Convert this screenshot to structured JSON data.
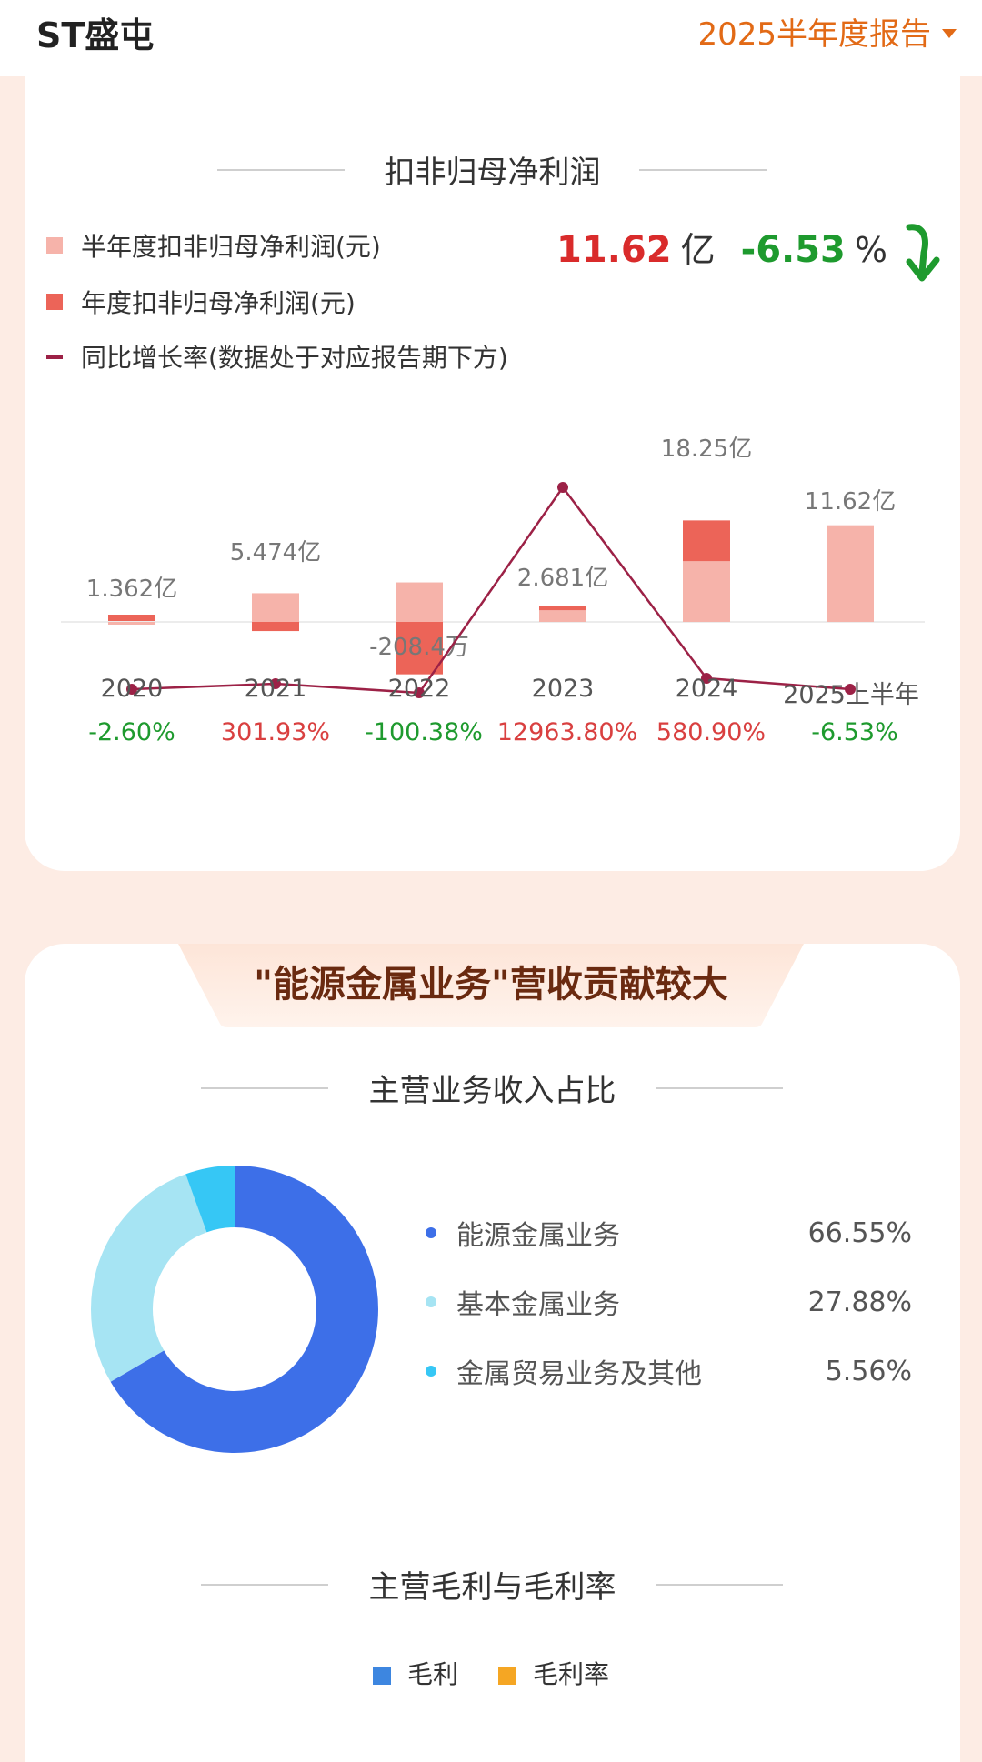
{
  "header": {
    "stock_name": "ST盛屯",
    "period": "2025半年度报告"
  },
  "profit_section": {
    "title": "扣非归母净利润",
    "legend": [
      "半年度扣非归母净利润(元)",
      "年度扣非归母净利润(元)",
      "同比增长率(数据处于对应报告期下方)"
    ],
    "latest_value": "11.62",
    "latest_unit": "亿",
    "latest_change": "-6.53",
    "latest_change_unit": "%"
  },
  "colors": {
    "half": "#f6b3aa",
    "annual": "#ec6458",
    "line": "#9c2146",
    "green": "#1e9a2e",
    "red": "#d94040",
    "donut": [
      "#3d6fe8",
      "#a6e4f3",
      "#36c7f5"
    ]
  },
  "chart_data": {
    "type": "bar",
    "categories": [
      "2020",
      "2021",
      "2022",
      "2023",
      "2024",
      "2025上半年"
    ],
    "series": [
      {
        "name": "半年度扣非归母净利润(元)",
        "values_yi": [
          -0.24,
          3.45,
          4.75,
          1.4,
          7.3,
          11.62
        ]
      },
      {
        "name": "年度扣非归母净利润(元)",
        "values_yi": [
          1.362,
          5.474,
          -0.02084,
          2.681,
          18.25,
          null
        ]
      },
      {
        "name": "同比增长率(数据处于对应报告期下方)",
        "values_pct": [
          -2.6,
          301.93,
          -100.38,
          12963.8,
          580.9,
          -6.53
        ]
      }
    ],
    "bar_labels": [
      "1.362亿",
      "5.474亿",
      "-208.4万",
      "2.681亿",
      "18.25亿",
      "11.62亿"
    ],
    "rate_labels": [
      "-2.60%",
      "301.93%",
      "-100.38%",
      "12963.80%",
      "580.90%",
      "-6.53%"
    ]
  },
  "business_section": {
    "banner": "\"能源金属业务\"营收贡献较大",
    "title": "主营业务收入占比",
    "items": [
      {
        "label": "能源金属业务",
        "value": "66.55%",
        "pct": 66.55
      },
      {
        "label": "基本金属业务",
        "value": "27.88%",
        "pct": 27.88
      },
      {
        "label": "金属贸易业务及其他",
        "value": "5.56%",
        "pct": 5.56
      }
    ]
  },
  "margin_section": {
    "title": "主营毛利与毛利率",
    "legend": [
      "毛利",
      "毛利率"
    ],
    "colors": [
      "#3d86e0",
      "#f5a623"
    ]
  }
}
